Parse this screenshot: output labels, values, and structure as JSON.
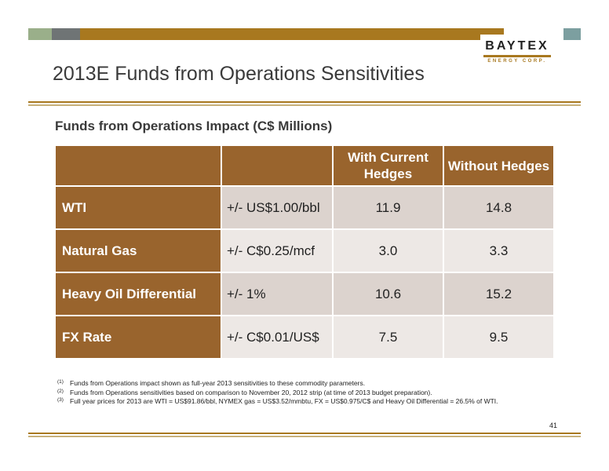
{
  "logo": {
    "word": "BAYTEX",
    "sub": "ENERGY CORP."
  },
  "page": {
    "title": "2013E Funds from Operations Sensitivities",
    "number": "41"
  },
  "table": {
    "subtitle": "Funds from Operations Impact (C$ Millions)",
    "headers": [
      "",
      "",
      "With Current Hedges",
      "Without Hedges"
    ],
    "rows": [
      {
        "label": "WTI",
        "sensitivity": "+/- US$1.00/bbl",
        "with_hedges": "11.9",
        "without_hedges": "14.8"
      },
      {
        "label": "Natural Gas",
        "sensitivity": "+/- C$0.25/mcf",
        "with_hedges": "3.0",
        "without_hedges": "3.3"
      },
      {
        "label": "Heavy Oil Differential",
        "sensitivity": "+/- 1%",
        "with_hedges": "10.6",
        "without_hedges": "15.2"
      },
      {
        "label": "FX Rate",
        "sensitivity": "+/- C$0.01/US$",
        "with_hedges": "7.5",
        "without_hedges": "9.5"
      }
    ]
  },
  "footnotes": [
    {
      "num": "(1)",
      "text": "Funds from Operations impact shown as full-year 2013 sensitivities to these commodity parameters."
    },
    {
      "num": "(2)",
      "text": "Funds from Operations sensitivities based on comparison to November 20, 2012 strip (at time of 2013 budget preparation)."
    },
    {
      "num": "(3)",
      "text": "Full year prices for 2013 are WTI = US$91.86/bbl, NYMEX gas = US$3.52/mmbtu, FX = US$0.975/C$ and Heavy Oil Differential = 26.5% of WTI."
    }
  ],
  "colors": {
    "accent_brown": "#a8781f",
    "table_header": "#99642d",
    "row_odd": "#dcd3ce",
    "row_even": "#ede8e5"
  }
}
